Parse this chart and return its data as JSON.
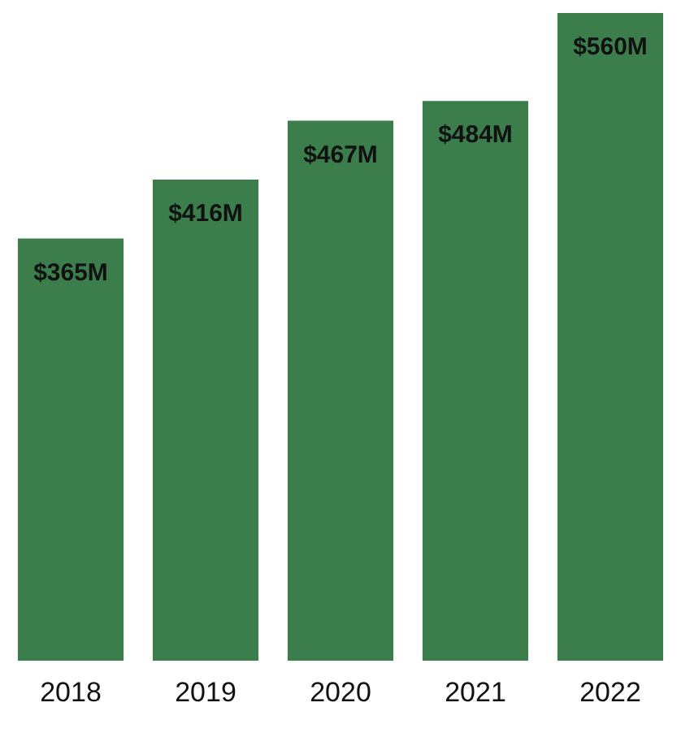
{
  "chart_data": {
    "type": "bar",
    "categories": [
      "2018",
      "2019",
      "2020",
      "2021",
      "2022"
    ],
    "values": [
      365,
      416,
      467,
      484,
      560
    ],
    "value_labels": [
      "$365M",
      "$416M",
      "$467M",
      "$484M",
      "$560M"
    ],
    "color": "#3b7e4c",
    "grid": false,
    "legend": false
  }
}
